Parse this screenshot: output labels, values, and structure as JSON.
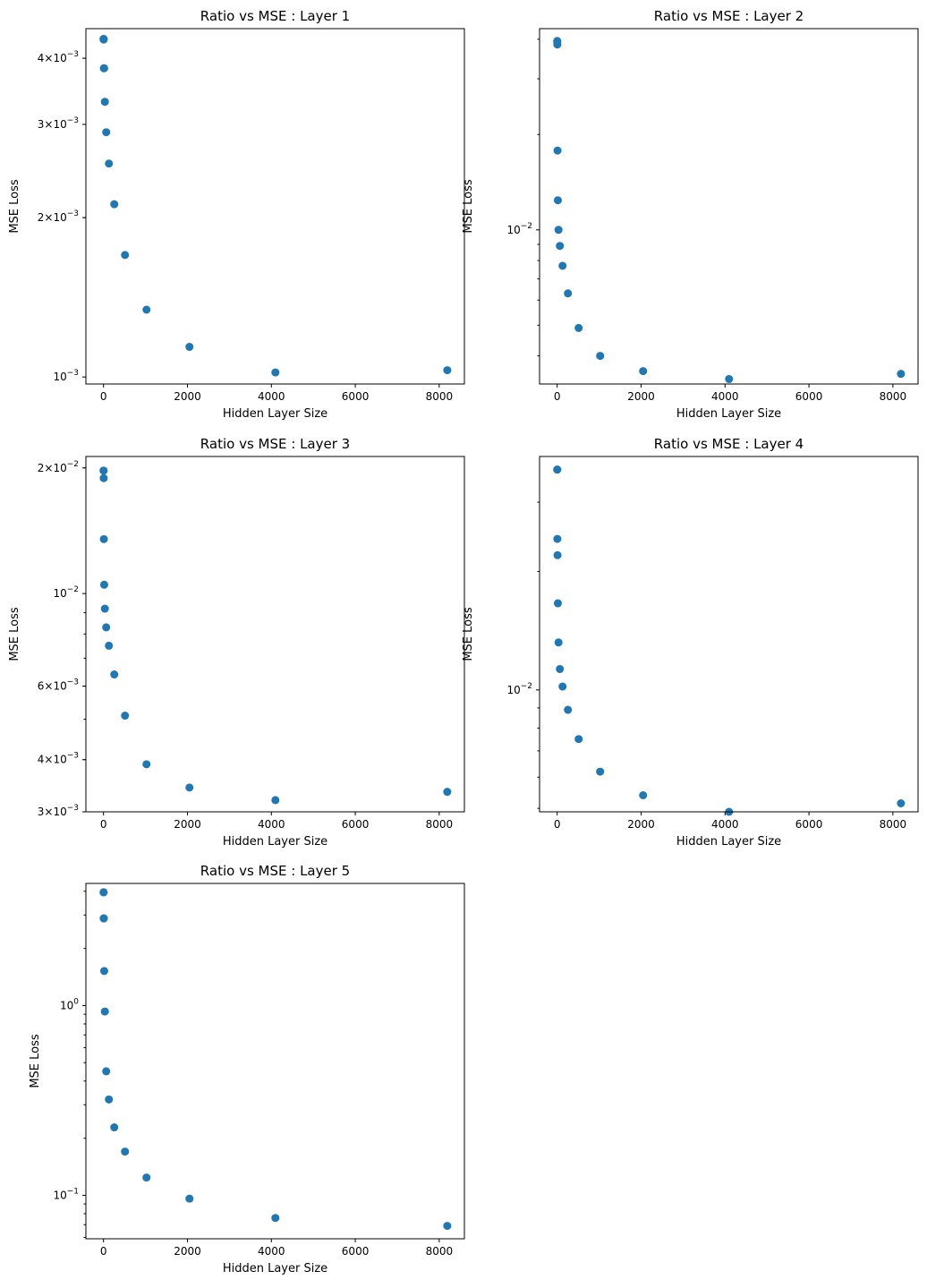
{
  "chart_data": [
    {
      "type": "scatter",
      "title": "Ratio vs MSE : Layer 1",
      "xlabel": "Hidden Layer Size",
      "ylabel": "MSE Loss",
      "yscale": "log",
      "xlim": [
        -420,
        8600
      ],
      "ylim": [
        0.00097,
        0.00455
      ],
      "x": [
        1,
        2,
        4,
        8,
        16,
        32,
        64,
        128,
        256,
        512,
        1024,
        2048,
        4096,
        8192
      ],
      "y": [
        0.00435,
        0.00435,
        0.00434,
        0.00383,
        0.00383,
        0.00331,
        0.0029,
        0.00253,
        0.00212,
        0.0017,
        0.00134,
        0.00114,
        0.00102,
        0.00103
      ],
      "xticks": [
        0,
        2000,
        4000,
        6000,
        8000
      ],
      "xtick_labels": [
        "0",
        "2000",
        "4000",
        "6000",
        "8000"
      ],
      "yticks": [
        0.001,
        0.002,
        0.003,
        0.004
      ],
      "ytick_labels": [
        {
          "base": "10",
          "exp": "−3"
        },
        {
          "base": "2×10",
          "exp": "−3"
        },
        {
          "base": "3×10",
          "exp": "−3"
        },
        {
          "base": "4×10",
          "exp": "−3"
        }
      ],
      "color": "#1f77b4"
    },
    {
      "type": "scatter",
      "title": "Ratio vs MSE : Layer 2",
      "xlabel": "Hidden Layer Size",
      "ylabel": "MSE Loss",
      "yscale": "log",
      "xlim": [
        -420,
        8600
      ],
      "ylim": [
        0.00326,
        0.0432
      ],
      "x": [
        1,
        2,
        4,
        8,
        16,
        32,
        64,
        128,
        256,
        512,
        1024,
        2048,
        4096,
        8192
      ],
      "y": [
        0.0395,
        0.0392,
        0.0385,
        0.0178,
        0.0124,
        0.01,
        0.0089,
        0.0077,
        0.0063,
        0.0049,
        0.004,
        0.00358,
        0.00338,
        0.00351
      ],
      "xticks": [
        0,
        2000,
        4000,
        6000,
        8000
      ],
      "xtick_labels": [
        "0",
        "2000",
        "4000",
        "6000",
        "8000"
      ],
      "yticks": [
        0.01
      ],
      "ytick_labels": [
        {
          "base": "10",
          "exp": "−2"
        }
      ],
      "color": "#1f77b4"
    },
    {
      "type": "scatter",
      "title": "Ratio vs MSE : Layer 3",
      "xlabel": "Hidden Layer Size",
      "ylabel": "MSE Loss",
      "yscale": "log",
      "xlim": [
        -420,
        8600
      ],
      "ylim": [
        0.003,
        0.0213
      ],
      "x": [
        1,
        2,
        4,
        8,
        16,
        32,
        64,
        128,
        256,
        512,
        1024,
        2048,
        4096,
        8192
      ],
      "y": [
        0.0197,
        0.0197,
        0.0189,
        0.0135,
        0.0105,
        0.0092,
        0.0083,
        0.0075,
        0.0064,
        0.0051,
        0.0039,
        0.00343,
        0.0032,
        0.00335
      ],
      "xticks": [
        0,
        2000,
        4000,
        6000,
        8000
      ],
      "xtick_labels": [
        "0",
        "2000",
        "4000",
        "6000",
        "8000"
      ],
      "yticks": [
        0.003,
        0.004,
        0.006,
        0.01,
        0.02
      ],
      "ytick_labels": [
        {
          "base": "3×10",
          "exp": "−3"
        },
        {
          "base": "4×10",
          "exp": "−3"
        },
        {
          "base": "6×10",
          "exp": "−3"
        },
        {
          "base": "10",
          "exp": "−2"
        },
        {
          "base": "2×10",
          "exp": "−2"
        }
      ],
      "color": "#1f77b4"
    },
    {
      "type": "scatter",
      "title": "Ratio vs MSE : Layer 4",
      "xlabel": "Hidden Layer Size",
      "ylabel": "MSE Loss",
      "yscale": "log",
      "xlim": [
        -420,
        8600
      ],
      "ylim": [
        0.0049,
        0.0392
      ],
      "x": [
        1,
        2,
        4,
        8,
        16,
        32,
        64,
        128,
        256,
        512,
        1024,
        2048,
        4096,
        8192
      ],
      "y": [
        0.0363,
        0.0363,
        0.0242,
        0.022,
        0.0166,
        0.0132,
        0.0113,
        0.0102,
        0.0089,
        0.0075,
        0.0062,
        0.0054,
        0.0049,
        0.00515
      ],
      "xticks": [
        0,
        2000,
        4000,
        6000,
        8000
      ],
      "xtick_labels": [
        "0",
        "2000",
        "4000",
        "6000",
        "8000"
      ],
      "yticks": [
        0.01
      ],
      "ytick_labels": [
        {
          "base": "10",
          "exp": "−2"
        }
      ],
      "color": "#1f77b4"
    },
    {
      "type": "scatter",
      "title": "Ratio vs MSE : Layer 5",
      "xlabel": "Hidden Layer Size",
      "ylabel": "MSE Loss",
      "yscale": "log",
      "xlim": [
        -420,
        8600
      ],
      "ylim": [
        0.059,
        4.4
      ],
      "x": [
        1,
        2,
        4,
        8,
        16,
        32,
        64,
        128,
        256,
        512,
        1024,
        2048,
        4096,
        8192
      ],
      "y": [
        3.95,
        3.95,
        2.88,
        2.88,
        1.52,
        0.93,
        0.45,
        0.32,
        0.228,
        0.17,
        0.124,
        0.096,
        0.076,
        0.069
      ],
      "xticks": [
        0,
        2000,
        4000,
        6000,
        8000
      ],
      "xtick_labels": [
        "0",
        "2000",
        "4000",
        "6000",
        "8000"
      ],
      "yticks": [
        0.1,
        1
      ],
      "ytick_labels": [
        {
          "base": "10",
          "exp": "−1"
        },
        {
          "base": "10",
          "exp": "0"
        }
      ],
      "color": "#1f77b4"
    }
  ]
}
